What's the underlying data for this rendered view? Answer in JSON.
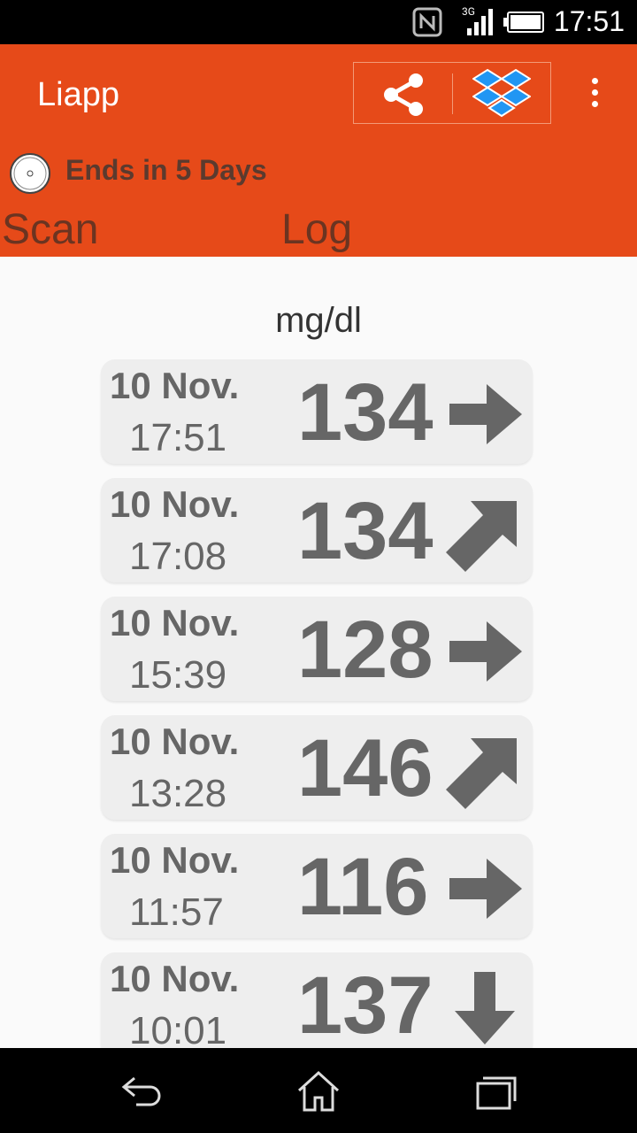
{
  "status_bar": {
    "time": "17:51",
    "network": "3G"
  },
  "app_bar": {
    "title": "Liapp",
    "share_icon": "share-icon",
    "dropbox_icon": "dropbox-icon",
    "menu_icon": "more-vertical-icon"
  },
  "sensor": {
    "ends_text": "Ends in 5 Days"
  },
  "tabs": [
    {
      "label": "Scan"
    },
    {
      "label": "Log"
    }
  ],
  "unit": "mg/dl",
  "readings": [
    {
      "date": "10 Nov.",
      "time": "17:51",
      "value": "134",
      "trend": "flat"
    },
    {
      "date": "10 Nov.",
      "time": "17:08",
      "value": "134",
      "trend": "up-right"
    },
    {
      "date": "10 Nov.",
      "time": "15:39",
      "value": "128",
      "trend": "flat"
    },
    {
      "date": "10 Nov.",
      "time": "13:28",
      "value": "146",
      "trend": "up-right"
    },
    {
      "date": "10 Nov.",
      "time": "11:57",
      "value": "116",
      "trend": "flat"
    },
    {
      "date": "10 Nov.",
      "time": "10:01",
      "value": "137",
      "trend": "down"
    }
  ],
  "colors": {
    "accent": "#e64a19",
    "card": "#eeeeee",
    "text": "#666666"
  }
}
